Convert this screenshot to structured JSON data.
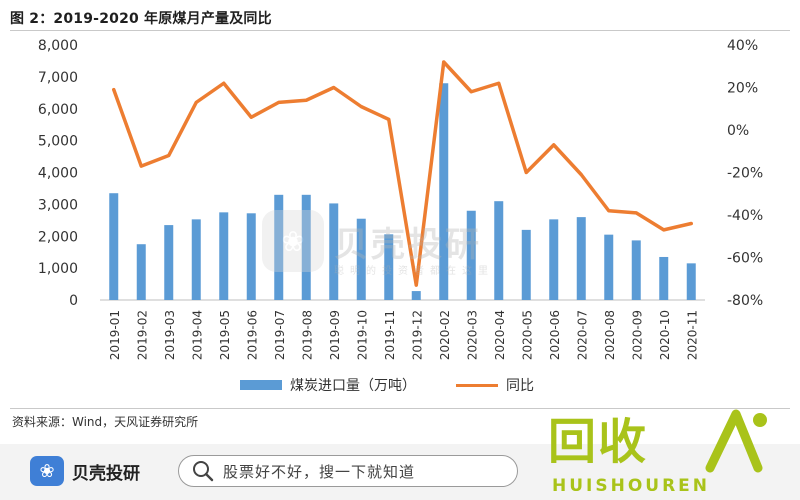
{
  "figure": {
    "title": "图 2：2019-2020 年原煤月产量及同比",
    "source": "资料来源：Wind，天风证券研究所"
  },
  "chart_data": {
    "type": "bar",
    "categories": [
      "2019-01",
      "2019-02",
      "2019-03",
      "2019-04",
      "2019-05",
      "2019-06",
      "2019-07",
      "2019-08",
      "2019-09",
      "2019-10",
      "2019-11",
      "2019-12",
      "2020-02",
      "2020-03",
      "2020-04",
      "2020-05",
      "2020-06",
      "2020-07",
      "2020-08",
      "2020-09",
      "2020-10",
      "2020-11"
    ],
    "series": [
      {
        "name": "煤炭进口量（万吨）",
        "type": "bar",
        "axis": "left",
        "color": "#5b9bd5",
        "values": [
          3350,
          1750,
          2350,
          2530,
          2750,
          2720,
          3300,
          3300,
          3030,
          2550,
          2060,
          280,
          6800,
          2800,
          3100,
          2200,
          2530,
          2600,
          2050,
          1870,
          1350,
          1150
        ]
      },
      {
        "name": "同比",
        "type": "line",
        "axis": "right",
        "color": "#ed7d31",
        "values": [
          19,
          -17,
          -12,
          13,
          22,
          6,
          13,
          14,
          20,
          11,
          5,
          -73,
          32,
          18,
          22,
          -20,
          -7,
          -21,
          -38,
          -39,
          -47,
          -44
        ]
      }
    ],
    "y_left": {
      "min": 0,
      "max": 8000,
      "ticks": [
        "0",
        "1,000",
        "2,000",
        "3,000",
        "4,000",
        "5,000",
        "6,000",
        "7,000",
        "8,000"
      ]
    },
    "y_right": {
      "min": -80,
      "max": 40,
      "ticks": [
        "-80%",
        "-60%",
        "-40%",
        "-20%",
        "0%",
        "20%",
        "40%"
      ]
    },
    "grid": false,
    "legend_position": "bottom"
  },
  "watermark": {
    "name": "贝壳投研",
    "slogan": "聪明的投资者都在这里"
  },
  "footer": {
    "brand_name": "贝壳投研",
    "search_placeholder": "股票好不好，搜一下就知道",
    "recycle_main": "回收",
    "recycle_sub": "HUISHOUREN"
  }
}
